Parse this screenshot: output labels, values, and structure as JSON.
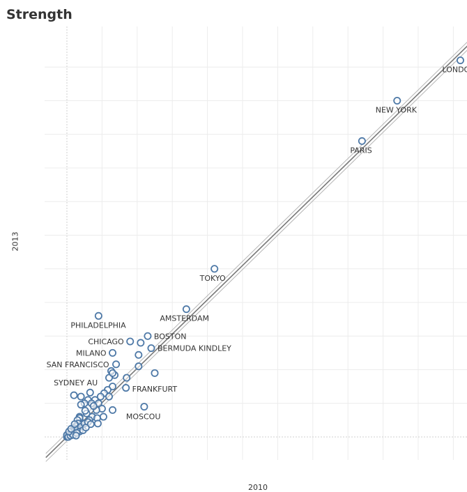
{
  "chart_data": {
    "type": "scatter",
    "title": "Strength",
    "xlabel": "2010",
    "ylabel": "2013",
    "xlim": [
      -3,
      59
    ],
    "ylim": [
      -3,
      59
    ],
    "grid": true,
    "trend_line": true,
    "point_color": "#4e79a7",
    "labeled_points": [
      {
        "name": "LONDON",
        "x": 56,
        "y": 56
      },
      {
        "name": "NEW YORK",
        "x": 47,
        "y": 50
      },
      {
        "name": "PARIS",
        "x": 42,
        "y": 44
      },
      {
        "name": "TOKYO",
        "x": 21,
        "y": 25
      },
      {
        "name": "AMSTERDAM",
        "x": 17,
        "y": 19
      },
      {
        "name": "PHILADELPHIA",
        "x": 4.5,
        "y": 18
      },
      {
        "name": "BOSTON",
        "x": 11.5,
        "y": 15
      },
      {
        "name": "CHICAGO",
        "x": 9,
        "y": 14.2
      },
      {
        "name": "BERMUDA KINDLEY",
        "x": 12,
        "y": 13.2
      },
      {
        "name": "MILANO",
        "x": 6.5,
        "y": 12.5
      },
      {
        "name": "SAN FRANCISCO",
        "x": 7,
        "y": 10.8
      },
      {
        "name": "FRANKFURT",
        "x": 8.5,
        "y": 8.8
      },
      {
        "name": "SYDNEY AU",
        "x": 1,
        "y": 6.2
      },
      {
        "name": "MOSCOU",
        "x": 11,
        "y": 4.5
      }
    ],
    "unlabeled_points": [
      {
        "x": 10.5,
        "y": 14
      },
      {
        "x": 10.2,
        "y": 12.2
      },
      {
        "x": 12.5,
        "y": 9.5
      },
      {
        "x": 10.2,
        "y": 10.5
      },
      {
        "x": 6.8,
        "y": 9.2
      },
      {
        "x": 6.0,
        "y": 8.8
      },
      {
        "x": 6.3,
        "y": 9.8
      },
      {
        "x": 6.5,
        "y": 9.5
      },
      {
        "x": 6.5,
        "y": 7.5
      },
      {
        "x": 8.4,
        "y": 7.3
      },
      {
        "x": 5.8,
        "y": 7.0
      },
      {
        "x": 5.3,
        "y": 6.5
      },
      {
        "x": 4.8,
        "y": 6.0
      },
      {
        "x": 6.0,
        "y": 6.0
      },
      {
        "x": 2.0,
        "y": 6.0
      },
      {
        "x": 3.3,
        "y": 6.6
      },
      {
        "x": 4.0,
        "y": 5.5
      },
      {
        "x": 3.0,
        "y": 5.5
      },
      {
        "x": 3.5,
        "y": 5.0
      },
      {
        "x": 4.5,
        "y": 5.0
      },
      {
        "x": 6.5,
        "y": 4.0
      },
      {
        "x": 2.5,
        "y": 5.0
      },
      {
        "x": 2.0,
        "y": 4.8
      },
      {
        "x": 5.0,
        "y": 4.2
      },
      {
        "x": 4.2,
        "y": 4.0
      },
      {
        "x": 5.2,
        "y": 3.0
      },
      {
        "x": 2.8,
        "y": 3.5
      },
      {
        "x": 3.6,
        "y": 3.0
      },
      {
        "x": 4.3,
        "y": 2.8
      },
      {
        "x": 3.2,
        "y": 2.5
      },
      {
        "x": 2.0,
        "y": 2.2
      },
      {
        "x": 2.2,
        "y": 1.8
      },
      {
        "x": 1.8,
        "y": 3.0
      },
      {
        "x": 4.4,
        "y": 2.0
      },
      {
        "x": 1.8,
        "y": 2.8
      },
      {
        "x": 1.5,
        "y": 2.5
      },
      {
        "x": 1.6,
        "y": 2.0
      },
      {
        "x": 1.3,
        "y": 1.6
      },
      {
        "x": 1.2,
        "y": 1.2
      },
      {
        "x": 1.0,
        "y": 1.3
      },
      {
        "x": 0.9,
        "y": 1.0
      },
      {
        "x": 0.8,
        "y": 0.9
      },
      {
        "x": 0.6,
        "y": 0.7
      },
      {
        "x": 0.5,
        "y": 0.5
      },
      {
        "x": 0.4,
        "y": 0.4
      },
      {
        "x": 0.3,
        "y": 0.3
      },
      {
        "x": 0.2,
        "y": 0.25
      },
      {
        "x": 0.1,
        "y": 0.1
      },
      {
        "x": 0.0,
        "y": 0.0
      },
      {
        "x": 0.0,
        "y": 0.3
      },
      {
        "x": 0.2,
        "y": 0.0
      },
      {
        "x": 0.5,
        "y": 0.2
      },
      {
        "x": 0.7,
        "y": 0.5
      },
      {
        "x": 1.0,
        "y": 0.8
      },
      {
        "x": 1.5,
        "y": 1.2
      },
      {
        "x": 2.0,
        "y": 1.5
      },
      {
        "x": 2.5,
        "y": 2.0
      },
      {
        "x": 3.0,
        "y": 2.2
      },
      {
        "x": 1.8,
        "y": 0.8
      },
      {
        "x": 0.9,
        "y": 0.3
      },
      {
        "x": 1.4,
        "y": 0.6
      },
      {
        "x": 2.3,
        "y": 1.0
      },
      {
        "x": 0.3,
        "y": 0.8
      },
      {
        "x": 0.6,
        "y": 1.2
      },
      {
        "x": 1.1,
        "y": 1.9
      },
      {
        "x": 2.6,
        "y": 3.9
      },
      {
        "x": 3.8,
        "y": 4.6
      },
      {
        "x": 1.3,
        "y": 0.2
      },
      {
        "x": 2.7,
        "y": 1.4
      },
      {
        "x": 3.4,
        "y": 1.9
      }
    ]
  }
}
